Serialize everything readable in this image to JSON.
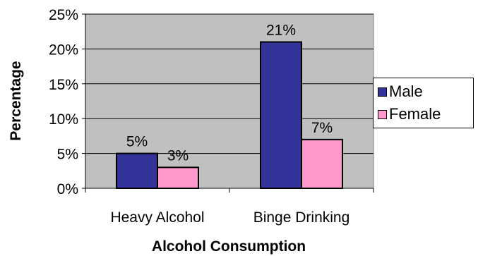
{
  "chart_data": {
    "type": "bar",
    "categories": [
      "Heavy Alcohol",
      "Binge Drinking"
    ],
    "series": [
      {
        "name": "Male",
        "values": [
          5,
          21
        ],
        "labels": [
          "5%",
          "21%"
        ],
        "color": "#333399"
      },
      {
        "name": "Female",
        "values": [
          3,
          7
        ],
        "labels": [
          "3%",
          "7%"
        ],
        "color": "#FF99CC"
      }
    ],
    "xlabel": "Alcohol Consumption",
    "ylabel": "Percentage",
    "ylim": [
      0,
      25
    ],
    "yticks": [
      0,
      5,
      10,
      15,
      20,
      25
    ],
    "ytick_labels": [
      "0%",
      "5%",
      "10%",
      "15%",
      "20%",
      "25%"
    ],
    "grid": true,
    "plot_background": "#C0C0C0",
    "legend_position": "right"
  }
}
